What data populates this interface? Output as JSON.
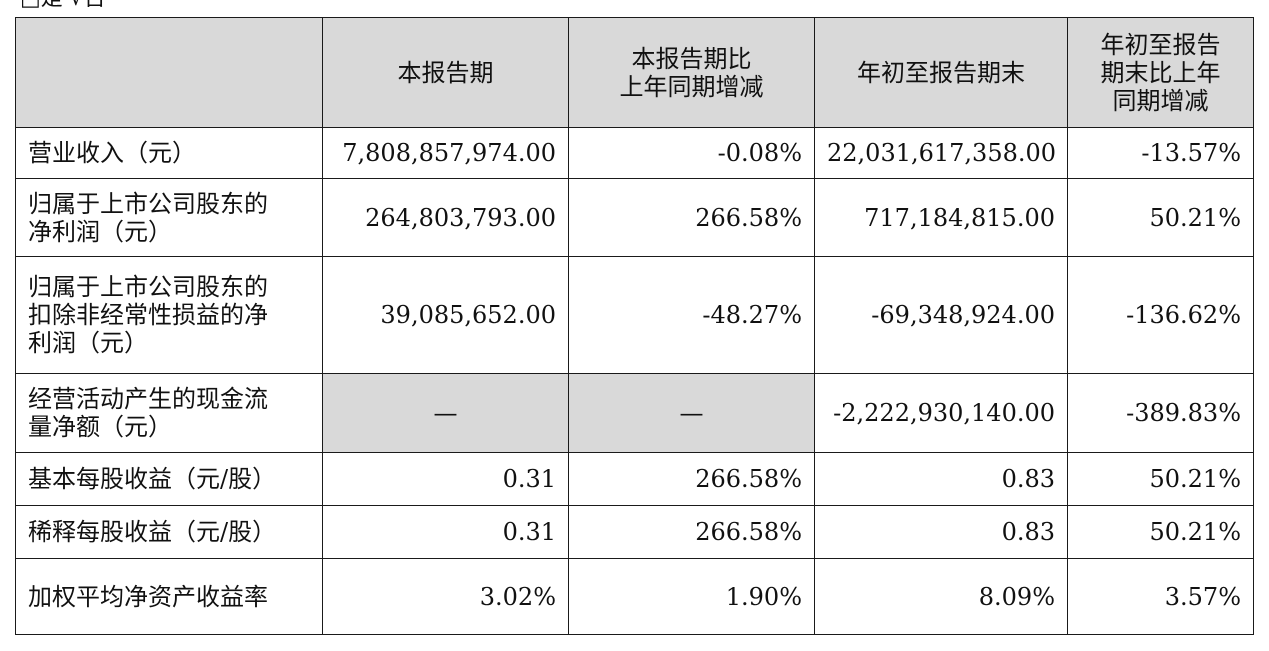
{
  "top_fragment": "□是 √否",
  "table": {
    "headers": [
      "",
      "本报告期",
      "本报告期比\n上年同期增减",
      "年初至报告期末",
      "年初至报告\n期末比上年\n同期增减"
    ],
    "rows": [
      {
        "label": "营业收入（元）",
        "cells": [
          "7,808,857,974.00",
          "-0.08%",
          "22,031,617,358.00",
          "-13.57%"
        ]
      },
      {
        "label": "归属于上市公司股东的\n净利润（元）",
        "cells": [
          "264,803,793.00",
          "266.58%",
          "717,184,815.00",
          "50.21%"
        ]
      },
      {
        "label": "归属于上市公司股东的\n扣除非经常性损益的净\n利润（元）",
        "cells": [
          "39,085,652.00",
          "-48.27%",
          "-69,348,924.00",
          "-136.62%"
        ]
      },
      {
        "label": "经营活动产生的现金流\n量净额（元）",
        "cells": [
          "—",
          "—",
          "-2,222,930,140.00",
          "-389.83%"
        ]
      },
      {
        "label": "基本每股收益（元/股）",
        "cells": [
          "0.31",
          "266.58%",
          "0.83",
          "50.21%"
        ]
      },
      {
        "label": "稀释每股收益（元/股）",
        "cells": [
          "0.31",
          "266.58%",
          "0.83",
          "50.21%"
        ]
      },
      {
        "label": "加权平均净资产收益率",
        "cells": [
          "3.02%",
          "1.90%",
          "8.09%",
          "3.57%"
        ]
      }
    ]
  }
}
